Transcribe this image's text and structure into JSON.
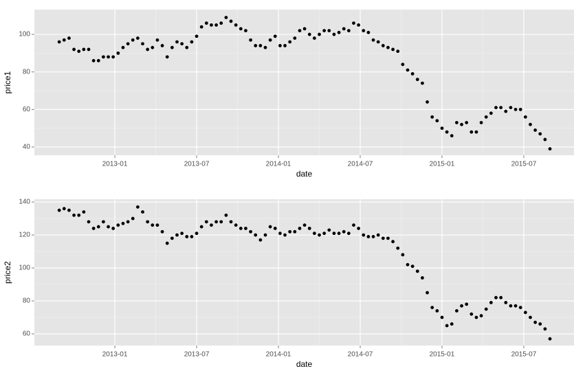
{
  "chart_data": [
    {
      "type": "scatter",
      "x_label": "date",
      "y_label": "price1",
      "color": "#000000",
      "grid": true,
      "xlim": [
        2012.508,
        2015.807
      ],
      "xticks": [
        {
          "value": 2013.0,
          "label": "2013-01"
        },
        {
          "value": 2013.5,
          "label": "2013-07"
        },
        {
          "value": 2014.0,
          "label": "2014-01"
        },
        {
          "value": 2014.5,
          "label": "2014-07"
        },
        {
          "value": 2015.0,
          "label": "2015-01"
        },
        {
          "value": 2015.5,
          "label": "2015-07"
        }
      ],
      "ylim": [
        35.6,
        113.2
      ],
      "yticks": [
        40,
        60,
        80,
        100
      ],
      "x": [
        2012.66,
        2012.69,
        2012.72,
        2012.75,
        2012.78,
        2012.81,
        2012.84,
        2012.87,
        2012.9,
        2012.93,
        2012.96,
        2012.99,
        2013.02,
        2013.05,
        2013.08,
        2013.11,
        2013.14,
        2013.17,
        2013.2,
        2013.23,
        2013.26,
        2013.29,
        2013.32,
        2013.35,
        2013.38,
        2013.41,
        2013.44,
        2013.47,
        2013.5,
        2013.53,
        2013.56,
        2013.59,
        2013.62,
        2013.65,
        2013.68,
        2013.71,
        2013.74,
        2013.77,
        2013.8,
        2013.83,
        2013.86,
        2013.89,
        2013.92,
        2013.95,
        2013.98,
        2014.01,
        2014.04,
        2014.07,
        2014.1,
        2014.13,
        2014.16,
        2014.19,
        2014.22,
        2014.25,
        2014.28,
        2014.31,
        2014.34,
        2014.37,
        2014.4,
        2014.43,
        2014.46,
        2014.49,
        2014.52,
        2014.55,
        2014.58,
        2014.61,
        2014.64,
        2014.67,
        2014.7,
        2014.73,
        2014.76,
        2014.79,
        2014.82,
        2014.85,
        2014.88,
        2014.91,
        2014.94,
        2014.97,
        2015.0,
        2015.03,
        2015.06,
        2015.09,
        2015.12,
        2015.15,
        2015.18,
        2015.21,
        2015.24,
        2015.27,
        2015.3,
        2015.33,
        2015.36,
        2015.39,
        2015.42,
        2015.45,
        2015.48,
        2015.51,
        2015.54,
        2015.57,
        2015.6,
        2015.63,
        2015.66
      ],
      "values": [
        96,
        97,
        98,
        92,
        91,
        92,
        92,
        86,
        86,
        88,
        88,
        88,
        90,
        93,
        95,
        97,
        98,
        95,
        92,
        93,
        97,
        94,
        88,
        93,
        96,
        95,
        93,
        96,
        99,
        104,
        106,
        105,
        105,
        106,
        109,
        107,
        105,
        103,
        102,
        97,
        94,
        94,
        93,
        97,
        99,
        94,
        94,
        96,
        98,
        102,
        103,
        100,
        98,
        100,
        102,
        102,
        100,
        101,
        103,
        102,
        106,
        105,
        102,
        101,
        97,
        96,
        94,
        93,
        92,
        91,
        84,
        81,
        79,
        76,
        74,
        64,
        56,
        54,
        50,
        48,
        46,
        53,
        52,
        53,
        48,
        48,
        53,
        56,
        58,
        61,
        61,
        59,
        61,
        60,
        60,
        56,
        52,
        49,
        47,
        44,
        39
      ]
    },
    {
      "type": "scatter",
      "x_label": "date",
      "y_label": "price2",
      "color": "#000000",
      "grid": true,
      "xlim": [
        2012.508,
        2015.807
      ],
      "xticks": [
        {
          "value": 2013.0,
          "label": "2013-01"
        },
        {
          "value": 2013.5,
          "label": "2013-07"
        },
        {
          "value": 2014.0,
          "label": "2014-01"
        },
        {
          "value": 2014.5,
          "label": "2014-07"
        },
        {
          "value": 2015.0,
          "label": "2015-01"
        },
        {
          "value": 2015.5,
          "label": "2015-07"
        }
      ],
      "ylim": [
        52.9,
        141.7
      ],
      "yticks": [
        60,
        80,
        100,
        120,
        140
      ],
      "x": [
        2012.66,
        2012.69,
        2012.72,
        2012.75,
        2012.78,
        2012.81,
        2012.84,
        2012.87,
        2012.9,
        2012.93,
        2012.96,
        2012.99,
        2013.02,
        2013.05,
        2013.08,
        2013.11,
        2013.14,
        2013.17,
        2013.2,
        2013.23,
        2013.26,
        2013.29,
        2013.32,
        2013.35,
        2013.38,
        2013.41,
        2013.44,
        2013.47,
        2013.5,
        2013.53,
        2013.56,
        2013.59,
        2013.62,
        2013.65,
        2013.68,
        2013.71,
        2013.74,
        2013.77,
        2013.8,
        2013.83,
        2013.86,
        2013.89,
        2013.92,
        2013.95,
        2013.98,
        2014.01,
        2014.04,
        2014.07,
        2014.1,
        2014.13,
        2014.16,
        2014.19,
        2014.22,
        2014.25,
        2014.28,
        2014.31,
        2014.34,
        2014.37,
        2014.4,
        2014.43,
        2014.46,
        2014.49,
        2014.52,
        2014.55,
        2014.58,
        2014.61,
        2014.64,
        2014.67,
        2014.7,
        2014.73,
        2014.76,
        2014.79,
        2014.82,
        2014.85,
        2014.88,
        2014.91,
        2014.94,
        2014.97,
        2015.0,
        2015.03,
        2015.06,
        2015.09,
        2015.12,
        2015.15,
        2015.18,
        2015.21,
        2015.24,
        2015.27,
        2015.3,
        2015.33,
        2015.36,
        2015.39,
        2015.42,
        2015.45,
        2015.48,
        2015.51,
        2015.54,
        2015.57,
        2015.6,
        2015.63,
        2015.66
      ],
      "values": [
        135,
        136,
        135,
        132,
        132,
        134,
        128,
        124,
        125,
        128,
        125,
        124,
        126,
        127,
        128,
        130,
        137,
        134,
        128,
        126,
        126,
        122,
        115,
        118,
        120,
        121,
        119,
        119,
        121,
        125,
        128,
        126,
        128,
        128,
        132,
        128,
        126,
        124,
        124,
        122,
        120,
        117,
        120,
        125,
        124,
        121,
        120,
        122,
        122,
        124,
        126,
        124,
        121,
        120,
        121,
        123,
        121,
        121,
        122,
        121,
        126,
        124,
        120,
        119,
        119,
        120,
        118,
        118,
        116,
        112,
        108,
        102,
        101,
        98,
        94,
        85,
        76,
        74,
        70,
        65,
        66,
        74,
        77,
        78,
        72,
        70,
        71,
        75,
        79,
        82,
        82,
        79,
        77,
        77,
        76,
        73,
        70,
        67,
        66,
        63,
        57
      ]
    }
  ]
}
